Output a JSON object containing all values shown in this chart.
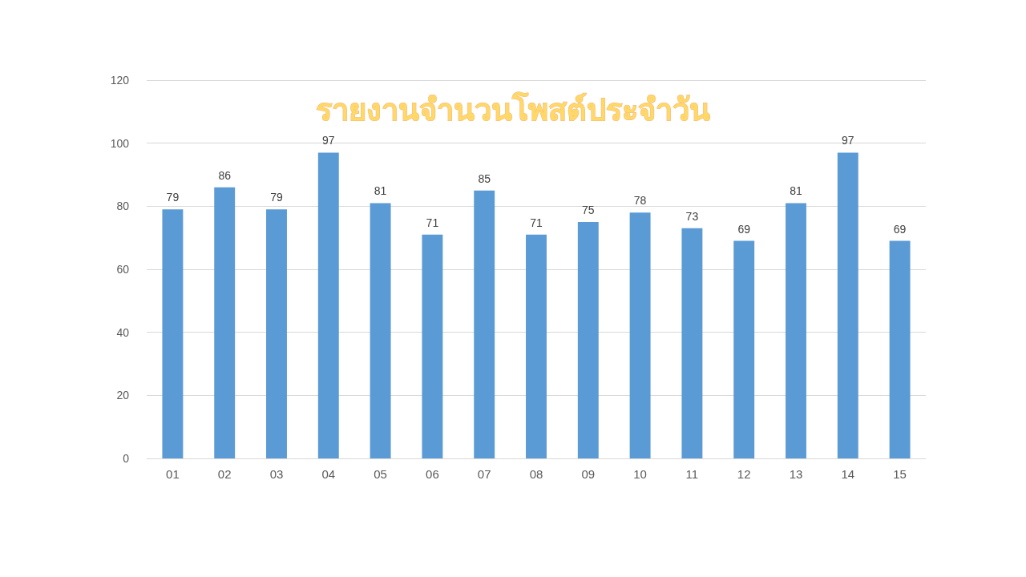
{
  "chart_data": {
    "type": "bar",
    "title": "รายงานจำนวนโพสต์ประจำวัน",
    "categories": [
      "01",
      "02",
      "03",
      "04",
      "05",
      "06",
      "07",
      "08",
      "09",
      "10",
      "11",
      "12",
      "13",
      "14",
      "15"
    ],
    "values": [
      79,
      86,
      79,
      97,
      81,
      71,
      85,
      71,
      75,
      78,
      73,
      69,
      81,
      97,
      69
    ],
    "color": "#5b9bd5",
    "ylim": [
      0,
      120
    ],
    "yticks": [
      0,
      20,
      40,
      60,
      80,
      100,
      120
    ],
    "grid": "y",
    "data_labels": true
  }
}
